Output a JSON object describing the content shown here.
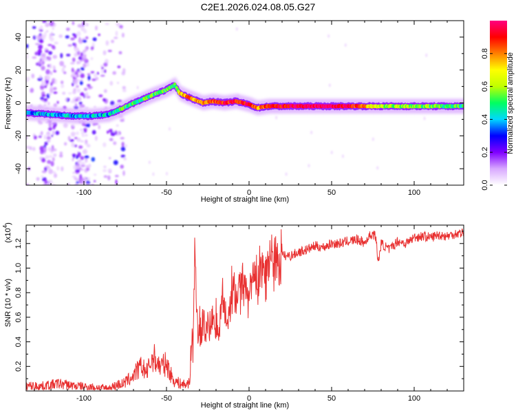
{
  "title": "C2E1.2026.024.08.05.G27",
  "chart_data": [
    {
      "type": "heatmap",
      "xlabel": "Height of straight line (km)",
      "ylabel": "Frequency (Hz)",
      "xlim": [
        -135,
        130
      ],
      "ylim": [
        -50,
        50
      ],
      "xticks": [
        -100,
        -50,
        0,
        50,
        100
      ],
      "yticks": [
        -40,
        -20,
        0,
        20,
        40
      ],
      "colorbar": {
        "label": "Normalized spectral amplitude",
        "range": [
          0,
          1
        ],
        "ticks": [
          "0.0",
          "0.2",
          "0.4",
          "0.6",
          "0.8"
        ],
        "colors": [
          "#ffffff",
          "#d8a8ff",
          "#8000ff",
          "#0000ff",
          "#00d8ff",
          "#00ff60",
          "#c0ff00",
          "#ffff00",
          "#ff8000",
          "#ff0000",
          "#ff0080"
        ]
      },
      "ridge": {
        "x": [
          -135,
          -120,
          -105,
          -95,
          -85,
          -78,
          -72,
          -65,
          -58,
          -50,
          -45,
          -42,
          -38,
          -33,
          -28,
          -22,
          -15,
          -8,
          0,
          5,
          12,
          20,
          40,
          60,
          80,
          100,
          115,
          130
        ],
        "freq": [
          -6,
          -7,
          -8,
          -8,
          -7,
          -4,
          -1,
          2,
          5,
          8,
          11,
          6,
          4,
          2,
          0,
          1,
          0,
          1,
          -1,
          -3,
          -2,
          -2,
          -2,
          -2,
          -2,
          -2,
          -2,
          -2
        ],
        "amplitude": [
          0.35,
          0.4,
          0.4,
          0.4,
          0.4,
          0.5,
          0.5,
          0.5,
          0.55,
          0.5,
          0.5,
          0.7,
          0.8,
          0.75,
          0.8,
          0.85,
          0.9,
          0.9,
          0.9,
          0.8,
          0.85,
          0.9,
          1.0,
          0.95,
          0.6,
          0.55,
          0.55,
          0.5
        ]
      }
    },
    {
      "type": "line",
      "xlabel": "Height of straight line (km)",
      "ylabel": "SNR (10 * v/v)",
      "yscale_label": "(x10",
      "yscale_exp": "4",
      "xlim": [
        -135,
        130
      ],
      "ylim": [
        0,
        1.35
      ],
      "xticks": [
        -100,
        -50,
        0,
        50,
        100
      ],
      "yticks": [
        "0.2",
        "0.4",
        "0.6",
        "0.8",
        "1.0",
        "1.2"
      ],
      "color": "#e83030",
      "series": [
        {
          "name": "SNR",
          "x": [
            -135,
            -125,
            -115,
            -105,
            -95,
            -85,
            -80,
            -76,
            -72,
            -68,
            -65,
            -62,
            -58,
            -54,
            -50,
            -46,
            -42,
            -38,
            -36,
            -35,
            -34,
            -33,
            -31,
            -28,
            -25,
            -22,
            -19,
            -16,
            -13,
            -10,
            -7,
            -4,
            -1,
            2,
            5,
            8,
            11,
            14,
            17,
            20,
            25,
            30,
            35,
            40,
            45,
            50,
            55,
            60,
            65,
            68,
            70,
            72,
            75,
            77,
            78,
            80,
            85,
            90,
            95,
            100,
            105,
            110,
            115,
            120,
            125,
            130
          ],
          "y": [
            0.04,
            0.04,
            0.06,
            0.04,
            0.03,
            0.02,
            0.05,
            0.06,
            0.1,
            0.16,
            0.2,
            0.15,
            0.28,
            0.2,
            0.22,
            0.09,
            0.06,
            0.05,
            0.08,
            0.35,
            0.3,
            1.17,
            0.4,
            0.55,
            0.48,
            0.6,
            0.5,
            0.7,
            0.6,
            0.8,
            0.75,
            0.85,
            0.72,
            0.9,
            0.85,
            1.0,
            0.95,
            1.05,
            1.02,
            1.1,
            1.1,
            1.13,
            1.15,
            1.18,
            1.17,
            1.2,
            1.2,
            1.22,
            1.23,
            1.22,
            1.2,
            1.25,
            1.28,
            1.25,
            1.03,
            1.2,
            1.15,
            1.22,
            1.2,
            1.25,
            1.26,
            1.25,
            1.27,
            1.26,
            1.28,
            1.29
          ]
        }
      ]
    }
  ]
}
